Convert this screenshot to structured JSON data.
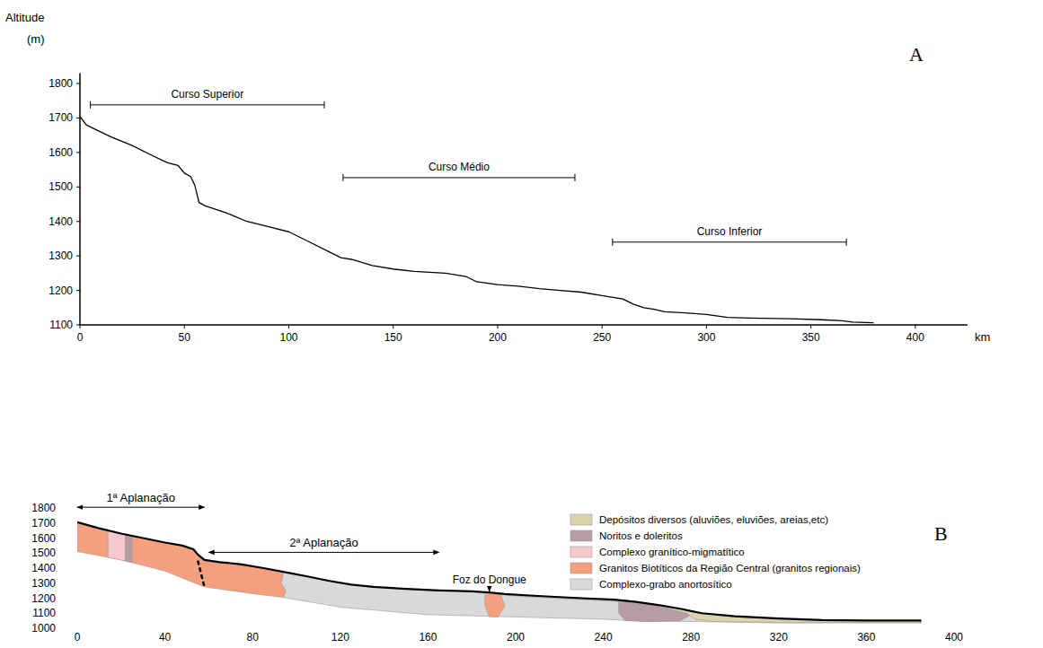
{
  "chart_data": [
    {
      "type": "line",
      "title": "A",
      "y_label": [
        "Altitude",
        "(m)"
      ],
      "x_label": "km",
      "x": [
        0,
        3,
        8,
        15,
        25,
        35,
        42,
        47,
        50,
        53,
        55,
        57,
        60,
        70,
        80,
        90,
        100,
        110,
        120,
        125,
        130,
        140,
        150,
        160,
        175,
        185,
        190,
        200,
        210,
        220,
        230,
        240,
        250,
        260,
        265,
        270,
        275,
        280,
        290,
        300,
        310,
        320,
        340,
        355,
        365,
        370,
        380
      ],
      "values": [
        1705,
        1680,
        1665,
        1645,
        1620,
        1590,
        1570,
        1562,
        1540,
        1530,
        1505,
        1455,
        1445,
        1425,
        1400,
        1385,
        1370,
        1340,
        1310,
        1295,
        1290,
        1272,
        1262,
        1255,
        1250,
        1240,
        1225,
        1217,
        1212,
        1205,
        1200,
        1195,
        1185,
        1175,
        1160,
        1150,
        1145,
        1138,
        1135,
        1130,
        1122,
        1120,
        1118,
        1115,
        1112,
        1108,
        1106
      ],
      "color": "#000000",
      "xlim": [
        0,
        425
      ],
      "ylim": [
        1100,
        1830
      ],
      "xticks": [
        0,
        50,
        100,
        150,
        200,
        250,
        300,
        350,
        400
      ],
      "yticks": [
        1100,
        1200,
        1300,
        1400,
        1500,
        1600,
        1700,
        1800
      ],
      "annotations": [
        {
          "text": "Curso Superior",
          "x": [
            5,
            117
          ],
          "y": 1738
        },
        {
          "text": "Curso Médio",
          "x": [
            126,
            237
          ],
          "y": 1527
        },
        {
          "text": "Curso Inferior",
          "x": [
            255,
            367
          ],
          "y": 1340
        }
      ]
    },
    {
      "type": "cross_section",
      "title": "B",
      "xlim": [
        0,
        400
      ],
      "ylim": [
        1000,
        1800
      ],
      "xticks": [
        0,
        40,
        80,
        120,
        160,
        200,
        240,
        280,
        320,
        360,
        400
      ],
      "yticks": [
        1000,
        1100,
        1200,
        1300,
        1400,
        1500,
        1600,
        1700,
        1800
      ],
      "legend": "upper right",
      "surface": {
        "x": [
          0,
          10,
          20,
          30,
          40,
          48,
          53,
          55,
          58,
          65,
          75,
          85,
          94,
          105,
          115,
          125,
          135,
          150,
          165,
          180,
          188,
          195,
          210,
          230,
          245,
          255,
          265,
          275,
          285,
          300,
          320,
          340,
          360,
          385
        ],
        "y": [
          1705,
          1665,
          1630,
          1600,
          1570,
          1550,
          1525,
          1490,
          1455,
          1440,
          1425,
          1400,
          1375,
          1345,
          1315,
          1290,
          1275,
          1262,
          1252,
          1245,
          1238,
          1228,
          1215,
          1200,
          1190,
          1175,
          1155,
          1130,
          1100,
          1080,
          1065,
          1055,
          1052,
          1052
        ]
      },
      "series": [
        {
          "name": "Complexo-grabo anortosítico",
          "color": "#d9d9d9",
          "polygons": [
            {
              "x": [
                94,
                105,
                115,
                125,
                135,
                150,
                165,
                180,
                188,
                195,
                210,
                230,
                245,
                255,
                265,
                275,
                285,
                300,
                320,
                340,
                360,
                385,
                385,
                320,
                280,
                260,
                240,
                200,
                160,
                120,
                94,
                95,
                93
              ],
              "y": [
                1375,
                1345,
                1315,
                1290,
                1275,
                1262,
                1252,
                1245,
                1238,
                1228,
                1215,
                1200,
                1190,
                1175,
                1155,
                1130,
                1100,
                1080,
                1065,
                1055,
                1052,
                1052,
                1035,
                1035,
                1045,
                1045,
                1060,
                1075,
                1090,
                1140,
                1205,
                1250,
                1300
              ]
            }
          ]
        },
        {
          "name": "Granitos Biotíticos da Região Central (granitos regionais)",
          "color": "#f4a07f",
          "polygons": [
            {
              "x": [
                0,
                10,
                20,
                30,
                40,
                48,
                53,
                55,
                58,
                65,
                75,
                85,
                94,
                93,
                95,
                94,
                80,
                58,
                40,
                20,
                0
              ],
              "y": [
                1705,
                1665,
                1630,
                1600,
                1570,
                1550,
                1525,
                1490,
                1455,
                1440,
                1425,
                1400,
                1375,
                1300,
                1250,
                1205,
                1230,
                1275,
                1380,
                1455,
                1510
              ]
            },
            {
              "x": [
                186,
                193,
                195,
                192,
                188,
                186
              ],
              "y": [
                1240,
                1232,
                1150,
                1075,
                1076,
                1150
              ]
            }
          ]
        },
        {
          "name": "Complexo granítico-migmatítico",
          "color": "#f8c8cf",
          "polygons": [
            {
              "x": [
                14,
                22,
                22,
                14
              ],
              "y": [
                1652,
                1624,
                1448,
                1472
              ]
            }
          ]
        },
        {
          "name": "Noritos e doleritos",
          "color": "#b79ca3",
          "polygons": [
            {
              "x": [
                22,
                25,
                25,
                22
              ],
              "y": [
                1624,
                1615,
                1438,
                1448
              ]
            },
            {
              "x": [
                247,
                255,
                265,
                275,
                282,
                275,
                260,
                250,
                247
              ],
              "y": [
                1188,
                1175,
                1155,
                1130,
                1105,
                1050,
                1045,
                1050,
                1100
              ]
            }
          ]
        },
        {
          "name": "Depósitos diversos (aluviões, eluviões, areias,etc)",
          "color": "#ddd2ab",
          "polygons": [
            {
              "x": [
                195,
                210,
                230,
                245,
                250,
                250,
                230,
                210,
                196
              ],
              "y": [
                1228,
                1215,
                1200,
                1190,
                1183,
                1175,
                1190,
                1205,
                1218
              ]
            },
            {
              "x": [
                265,
                275,
                285,
                300,
                320,
                340,
                360,
                385,
                385,
                320,
                290,
                282,
                278,
                270
              ],
              "y": [
                1155,
                1130,
                1100,
                1080,
                1065,
                1055,
                1052,
                1052,
                1040,
                1040,
                1045,
                1060,
                1100,
                1130
              ]
            }
          ]
        }
      ],
      "fault": {
        "x": [
          55,
          58
        ],
        "y": [
          1450,
          1275
        ]
      },
      "annotations": [
        {
          "text": "1ª Aplanação",
          "x": [
            0,
            58
          ],
          "y": 1805
        },
        {
          "text": "2ª Aplanação",
          "x": [
            60,
            165
          ],
          "y": 1505
        },
        {
          "text": "Foz do Dongue",
          "x": 188,
          "y": 1300,
          "arrow_to": 1245
        }
      ]
    }
  ]
}
